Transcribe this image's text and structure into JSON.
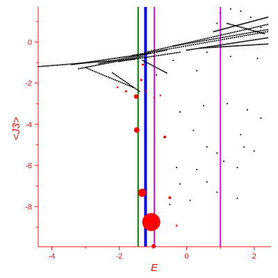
{
  "chart_data": {
    "type": "scatter",
    "xlabel": "E",
    "ylabel": "<J3>",
    "xlim": [
      -4.4,
      2.5
    ],
    "ylim": [
      -9.95,
      1.7
    ],
    "grid": false,
    "colors": {
      "axis": "#ee1111",
      "points": "#000000",
      "highlight": "#ff0000",
      "line_green": "#007a00",
      "line_blue": "#0000ff",
      "line_magenta": "#ff00ff"
    },
    "x_ticks": [
      {
        "value": -4,
        "label": "-4"
      },
      {
        "value": -2,
        "label": "-2"
      },
      {
        "value": 0,
        "label": "0"
      },
      {
        "value": 2,
        "label": "2"
      }
    ],
    "y_ticks": [
      {
        "value": 0,
        "label": "0"
      },
      {
        "value": -2,
        "label": "-2"
      },
      {
        "value": -4,
        "label": "-4"
      },
      {
        "value": -6,
        "label": "-6"
      },
      {
        "value": -8,
        "label": "-8"
      }
    ],
    "vertical_lines": [
      {
        "x": -1.44,
        "color": "#007a00",
        "width": 2
      },
      {
        "x": -1.22,
        "color": "#0000ff",
        "width": 4
      },
      {
        "x": -0.96,
        "color": "#ff00ff",
        "width": 2
      },
      {
        "x": 1.0,
        "color": "#ff00ff",
        "width": 2
      }
    ],
    "scatter_bands": [
      {
        "x0": -4.4,
        "y0": -1.2,
        "x1": -1.55,
        "y1": -0.83,
        "n": 60
      },
      {
        "x0": -3.4,
        "y0": -1.1,
        "x1": -1.1,
        "y1": -0.55,
        "n": 50
      },
      {
        "x0": -3.2,
        "y0": -1.3,
        "x1": -1.3,
        "y1": -0.7,
        "n": 40
      },
      {
        "x0": -2.6,
        "y0": -1.05,
        "x1": -0.6,
        "y1": -0.4,
        "n": 40
      },
      {
        "x0": -2.0,
        "y0": -0.95,
        "x1": -0.2,
        "y1": -0.5,
        "n": 35
      },
      {
        "x0": -1.6,
        "y0": -0.65,
        "x1": 2.4,
        "y1": 0.5,
        "n": 70
      },
      {
        "x0": -1.2,
        "y0": -0.5,
        "x1": 2.4,
        "y1": 0.85,
        "n": 70
      },
      {
        "x0": -0.4,
        "y0": -0.2,
        "x1": 2.4,
        "y1": 0.6,
        "n": 55
      },
      {
        "x0": 0.0,
        "y0": -0.4,
        "x1": 2.4,
        "y1": 0.2,
        "n": 55
      },
      {
        "x0": 0.4,
        "y0": -0.3,
        "x1": 2.4,
        "y1": -0.1,
        "n": 45
      },
      {
        "x0": 0.8,
        "y0": 0.5,
        "x1": 2.4,
        "y1": 1.2,
        "n": 40
      },
      {
        "x0": 1.2,
        "y0": 0.9,
        "x1": 2.3,
        "y1": 0.4,
        "n": 25
      },
      {
        "x0": -3.0,
        "y0": -1.25,
        "x1": -1.6,
        "y1": -2.2,
        "n": 28
      },
      {
        "x0": -2.2,
        "y0": -1.5,
        "x1": -1.4,
        "y1": -2.4,
        "n": 20
      },
      {
        "x0": -1.3,
        "y0": -0.9,
        "x1": -0.6,
        "y1": -1.5,
        "n": 18
      }
    ],
    "scatter_points": [
      {
        "x": 1.3,
        "y": 1.6
      },
      {
        "x": 1.0,
        "y": 1.4
      },
      {
        "x": 1.6,
        "y": 1.5
      },
      {
        "x": 0.9,
        "y": 0.9
      },
      {
        "x": 1.9,
        "y": 1.2
      },
      {
        "x": 2.2,
        "y": 0.7
      },
      {
        "x": -0.2,
        "y": -3.4
      },
      {
        "x": 0.5,
        "y": -3.1
      },
      {
        "x": 1.2,
        "y": -3.0
      },
      {
        "x": 1.8,
        "y": -3.3
      },
      {
        "x": 2.2,
        "y": -3.7
      },
      {
        "x": 0.2,
        "y": -4.3
      },
      {
        "x": 1.6,
        "y": -4.5
      },
      {
        "x": 0.6,
        "y": -5.1
      },
      {
        "x": 1.7,
        "y": -5.1
      },
      {
        "x": 0.9,
        "y": -5.4
      },
      {
        "x": 2.0,
        "y": -5.3
      },
      {
        "x": 1.1,
        "y": -5.8
      },
      {
        "x": -0.3,
        "y": -6.1
      },
      {
        "x": 0.3,
        "y": -6.2
      },
      {
        "x": 1.5,
        "y": -6.1
      },
      {
        "x": -0.2,
        "y": -6.9
      },
      {
        "x": 0.6,
        "y": -6.8
      },
      {
        "x": 0.9,
        "y": -7.3
      },
      {
        "x": 1.5,
        "y": -7.6
      },
      {
        "x": 0.1,
        "y": -7.7
      },
      {
        "x": -0.5,
        "y": -7.9
      },
      {
        "x": 0.6,
        "y": -0.5
      },
      {
        "x": 1.3,
        "y": -0.7
      },
      {
        "x": 2.1,
        "y": -0.8
      },
      {
        "x": -0.4,
        "y": -0.9
      },
      {
        "x": -0.6,
        "y": -1.5
      },
      {
        "x": 0.3,
        "y": -1.4
      },
      {
        "x": -0.9,
        "y": -1.6
      }
    ],
    "highlight_points": [
      {
        "x": -1.05,
        "y": -8.75,
        "size": 13
      },
      {
        "x": -1.32,
        "y": -7.33,
        "size": 6
      },
      {
        "x": -1.48,
        "y": -4.28,
        "size": 4
      },
      {
        "x": -1.5,
        "y": -2.65,
        "size": 3.2
      },
      {
        "x": -1.8,
        "y": -2.4,
        "size": 1.5
      },
      {
        "x": -2.05,
        "y": -2.2,
        "size": 1.3
      },
      {
        "x": -1.35,
        "y": -1.85,
        "size": 1.6
      },
      {
        "x": -1.3,
        "y": -1.1,
        "size": 1.6
      },
      {
        "x": -1.2,
        "y": -2.4,
        "size": 1.3
      },
      {
        "x": -0.97,
        "y": -2.7,
        "size": 1.2
      },
      {
        "x": -0.78,
        "y": -2.6,
        "size": 1.2
      },
      {
        "x": -0.65,
        "y": -4.62,
        "size": 2
      },
      {
        "x": -0.5,
        "y": -7.57,
        "size": 2
      },
      {
        "x": -0.3,
        "y": -8.92,
        "size": 1.3
      },
      {
        "x": -0.98,
        "y": -9.92,
        "size": 3
      }
    ]
  }
}
